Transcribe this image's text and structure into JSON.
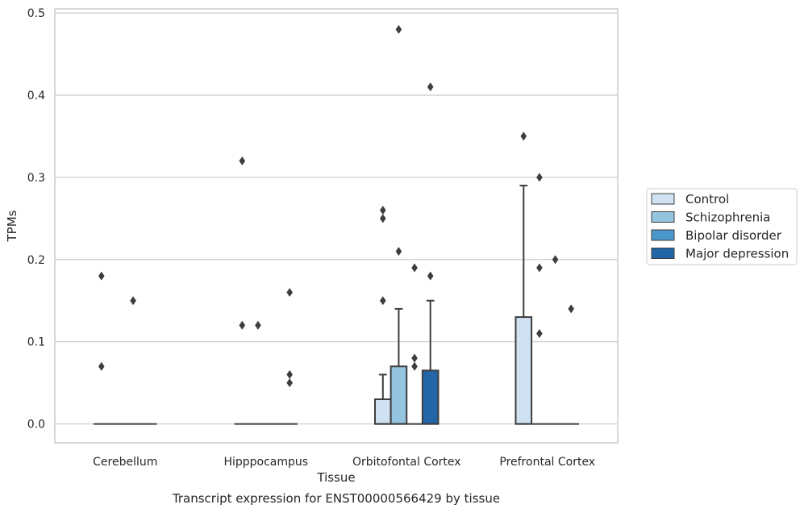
{
  "chart_data": {
    "type": "box",
    "xlabel": "Tissue",
    "ylabel": "TPMs",
    "caption": "Transcript expression for ENST00000566429 by tissue",
    "categories": [
      "Cerebellum",
      "Hipppocampus",
      "Orbitofontal Cortex",
      "Prefrontal Cortex"
    ],
    "ylim": [
      -0.023,
      0.505
    ],
    "yticks": [
      0.0,
      0.1,
      0.2,
      0.3,
      0.4,
      0.5
    ],
    "ytick_labels": [
      "0.0",
      "0.1",
      "0.2",
      "0.3",
      "0.4",
      "0.5"
    ],
    "grid": "horizontal",
    "legend_position": "right",
    "series": [
      {
        "name": "Control",
        "color": "#d0e1f2",
        "boxes": [
          {
            "q1": 0,
            "median": 0,
            "q3": 0,
            "whisker_low": 0,
            "whisker_high": 0,
            "outliers": [
              0.18,
              0.07
            ]
          },
          {
            "q1": 0,
            "median": 0,
            "q3": 0,
            "whisker_low": 0,
            "whisker_high": 0,
            "outliers": [
              0.32,
              0.12
            ]
          },
          {
            "q1": 0,
            "median": 0,
            "q3": 0.03,
            "whisker_low": 0,
            "whisker_high": 0.06,
            "outliers": [
              0.26,
              0.25,
              0.15
            ]
          },
          {
            "q1": 0,
            "median": 0,
            "q3": 0.13,
            "whisker_low": 0,
            "whisker_high": 0.29,
            "outliers": [
              0.35
            ]
          }
        ]
      },
      {
        "name": "Schizophrenia",
        "color": "#94c4df",
        "boxes": [
          {
            "q1": 0,
            "median": 0,
            "q3": 0,
            "whisker_low": 0,
            "whisker_high": 0,
            "outliers": []
          },
          {
            "q1": 0,
            "median": 0,
            "q3": 0,
            "whisker_low": 0,
            "whisker_high": 0,
            "outliers": [
              0.12
            ]
          },
          {
            "q1": 0,
            "median": 0,
            "q3": 0.07,
            "whisker_low": 0,
            "whisker_high": 0.14,
            "outliers": [
              0.48,
              0.21
            ]
          },
          {
            "q1": 0,
            "median": 0,
            "q3": 0,
            "whisker_low": 0,
            "whisker_high": 0,
            "outliers": [
              0.3,
              0.19,
              0.11
            ]
          }
        ]
      },
      {
        "name": "Bipolar disorder",
        "color": "#4a98c9",
        "boxes": [
          {
            "q1": 0,
            "median": 0,
            "q3": 0,
            "whisker_low": 0,
            "whisker_high": 0,
            "outliers": [
              0.15
            ]
          },
          {
            "q1": 0,
            "median": 0,
            "q3": 0,
            "whisker_low": 0,
            "whisker_high": 0,
            "outliers": []
          },
          {
            "q1": 0,
            "median": 0,
            "q3": 0,
            "whisker_low": 0,
            "whisker_high": 0,
            "outliers": [
              0.19,
              0.08,
              0.07
            ]
          },
          {
            "q1": 0,
            "median": 0,
            "q3": 0,
            "whisker_low": 0,
            "whisker_high": 0,
            "outliers": [
              0.2
            ]
          }
        ]
      },
      {
        "name": "Major depression",
        "color": "#2366a8",
        "boxes": [
          {
            "q1": 0,
            "median": 0,
            "q3": 0,
            "whisker_low": 0,
            "whisker_high": 0,
            "outliers": []
          },
          {
            "q1": 0,
            "median": 0,
            "q3": 0,
            "whisker_low": 0,
            "whisker_high": 0,
            "outliers": [
              0.16,
              0.06,
              0.05
            ]
          },
          {
            "q1": 0,
            "median": 0,
            "q3": 0.065,
            "whisker_low": 0,
            "whisker_high": 0.15,
            "outliers": [
              0.41,
              0.18
            ]
          },
          {
            "q1": 0,
            "median": 0,
            "q3": 0,
            "whisker_low": 0,
            "whisker_high": 0,
            "outliers": [
              0.14
            ]
          }
        ]
      }
    ]
  }
}
